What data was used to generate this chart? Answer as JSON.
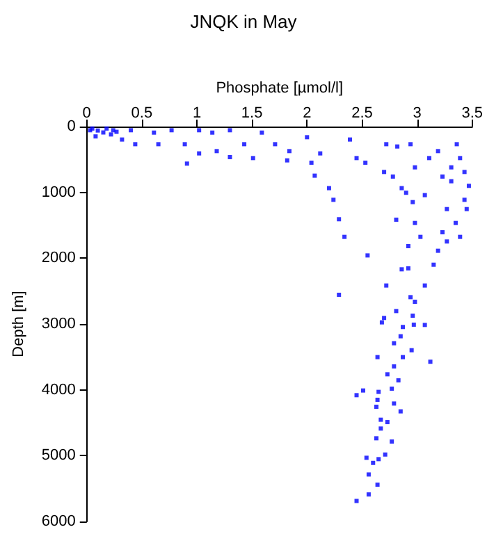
{
  "chart_data": {
    "type": "scatter",
    "title": "JNQK in May",
    "xlabel": "Phosphate [µmol/l]",
    "ylabel": "Depth [m]",
    "xlim": [
      0,
      3.5
    ],
    "xticks": [
      0,
      0.5,
      1,
      1.5,
      2,
      2.5,
      3,
      3.5
    ],
    "ylim": [
      6000,
      0
    ],
    "yticks": [
      0,
      1000,
      2000,
      3000,
      4000,
      5000,
      6000
    ],
    "grid": false,
    "marker": "square",
    "series": [
      {
        "color": "#0000ff",
        "x": [
          0.03,
          0.05,
          0.1,
          0.18,
          0.22,
          0.08,
          0.27,
          0.15,
          0.24,
          0.32,
          0.4,
          0.44,
          0.61,
          0.65,
          0.77,
          0.89,
          0.91,
          1.02,
          1.02,
          1.14,
          1.18,
          1.3,
          1.3,
          1.43,
          1.51,
          1.59,
          1.71,
          1.82,
          1.84,
          2.0,
          2.04,
          2.07,
          2.12,
          2.2,
          2.24,
          2.29,
          2.34,
          2.29,
          2.55,
          2.39,
          2.45,
          2.53,
          2.7,
          2.72,
          2.78,
          2.86,
          2.82,
          2.94,
          2.98,
          2.9,
          2.96,
          3.07,
          2.81,
          2.98,
          3.11,
          3.19,
          3.23,
          3.36,
          3.31,
          3.39,
          3.43,
          3.47,
          3.43,
          3.45,
          3.35,
          3.39,
          3.27,
          3.19,
          3.15,
          3.07,
          2.98,
          2.92,
          2.92,
          2.86,
          2.72,
          2.81,
          2.96,
          2.7,
          3.07,
          3.31,
          3.27,
          3.23,
          3.03,
          2.94,
          2.68,
          2.87,
          2.97,
          2.85,
          2.79,
          2.95,
          2.64,
          2.87,
          3.12,
          2.79,
          2.73,
          2.83,
          2.77,
          2.51,
          2.45,
          2.65,
          2.64,
          2.79,
          2.85,
          2.63,
          2.67,
          2.73,
          2.67,
          2.63,
          2.77,
          2.71,
          2.54,
          2.6,
          2.65,
          2.56,
          2.64,
          2.56,
          2.45
        ],
        "values": [
          56,
          30,
          60,
          30,
          120,
          150,
          80,
          90,
          56,
          197,
          56,
          268,
          92,
          268,
          56,
          268,
          563,
          56,
          408,
          92,
          373,
          56,
          465,
          268,
          479,
          92,
          268,
          514,
          373,
          162,
          549,
          746,
          408,
          936,
          1113,
          1408,
          1676,
          2556,
          1958,
          197,
          479,
          549,
          690,
          268,
          760,
          936,
          303,
          268,
          620,
          1006,
          1148,
          1042,
          1415,
          1465,
          479,
          373,
          760,
          268,
          620,
          479,
          690,
          901,
          1113,
          1254,
          1465,
          1676,
          1746,
          1887,
          2099,
          2415,
          2662,
          2155,
          1817,
          2169,
          2415,
          2803,
          2873,
          2908,
          3014,
          831,
          1254,
          1606,
          1676,
          2592,
          2975,
          3045,
          3010,
          3186,
          3292,
          3398,
          3503,
          3503,
          3573,
          3644,
          3764,
          3856,
          3982,
          4010,
          4081,
          4031,
          4151,
          4208,
          4327,
          4257,
          4454,
          4490,
          4588,
          4736,
          4785,
          4983,
          5032,
          5110,
          5053,
          5286,
          5441,
          5589,
          5688
        ]
      }
    ]
  }
}
